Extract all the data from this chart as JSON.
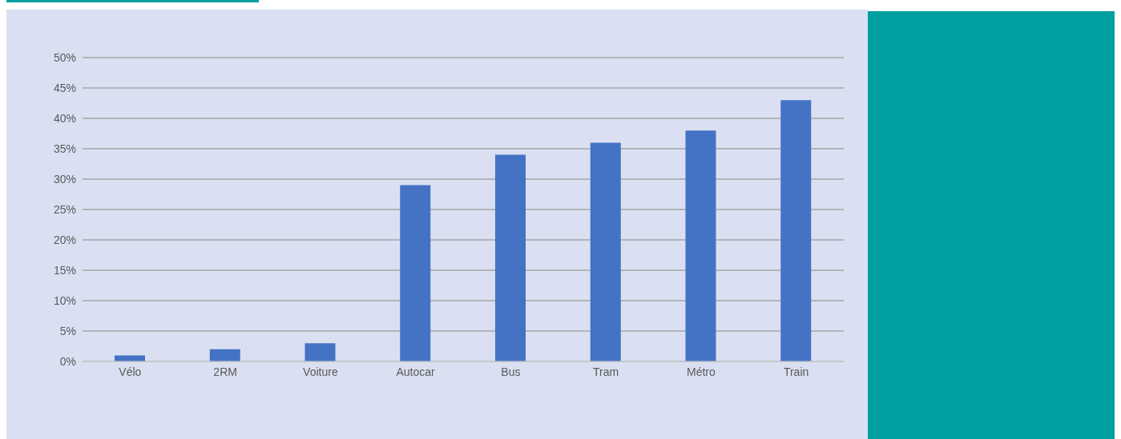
{
  "chart_data": {
    "type": "bar",
    "categories": [
      "Vélo",
      "2RM",
      "Voiture",
      "Autocar",
      "Bus",
      "Tram",
      "Métro",
      "Train"
    ],
    "values": [
      1,
      2,
      3,
      29,
      34,
      36,
      38,
      43
    ],
    "color": "#4472c4",
    "ylim": [
      0,
      50
    ],
    "yticks": [
      {
        "value": 0,
        "label": "0%"
      },
      {
        "value": 5,
        "label": "5%"
      },
      {
        "value": 10,
        "label": "10%"
      },
      {
        "value": 15,
        "label": "15%"
      },
      {
        "value": 20,
        "label": "20%"
      },
      {
        "value": 25,
        "label": "25%"
      },
      {
        "value": 30,
        "label": "30%"
      },
      {
        "value": 35,
        "label": "35%"
      },
      {
        "value": 40,
        "label": "40%"
      },
      {
        "value": 45,
        "label": "45%"
      },
      {
        "value": 50,
        "label": "50%"
      }
    ],
    "grid": "y"
  }
}
